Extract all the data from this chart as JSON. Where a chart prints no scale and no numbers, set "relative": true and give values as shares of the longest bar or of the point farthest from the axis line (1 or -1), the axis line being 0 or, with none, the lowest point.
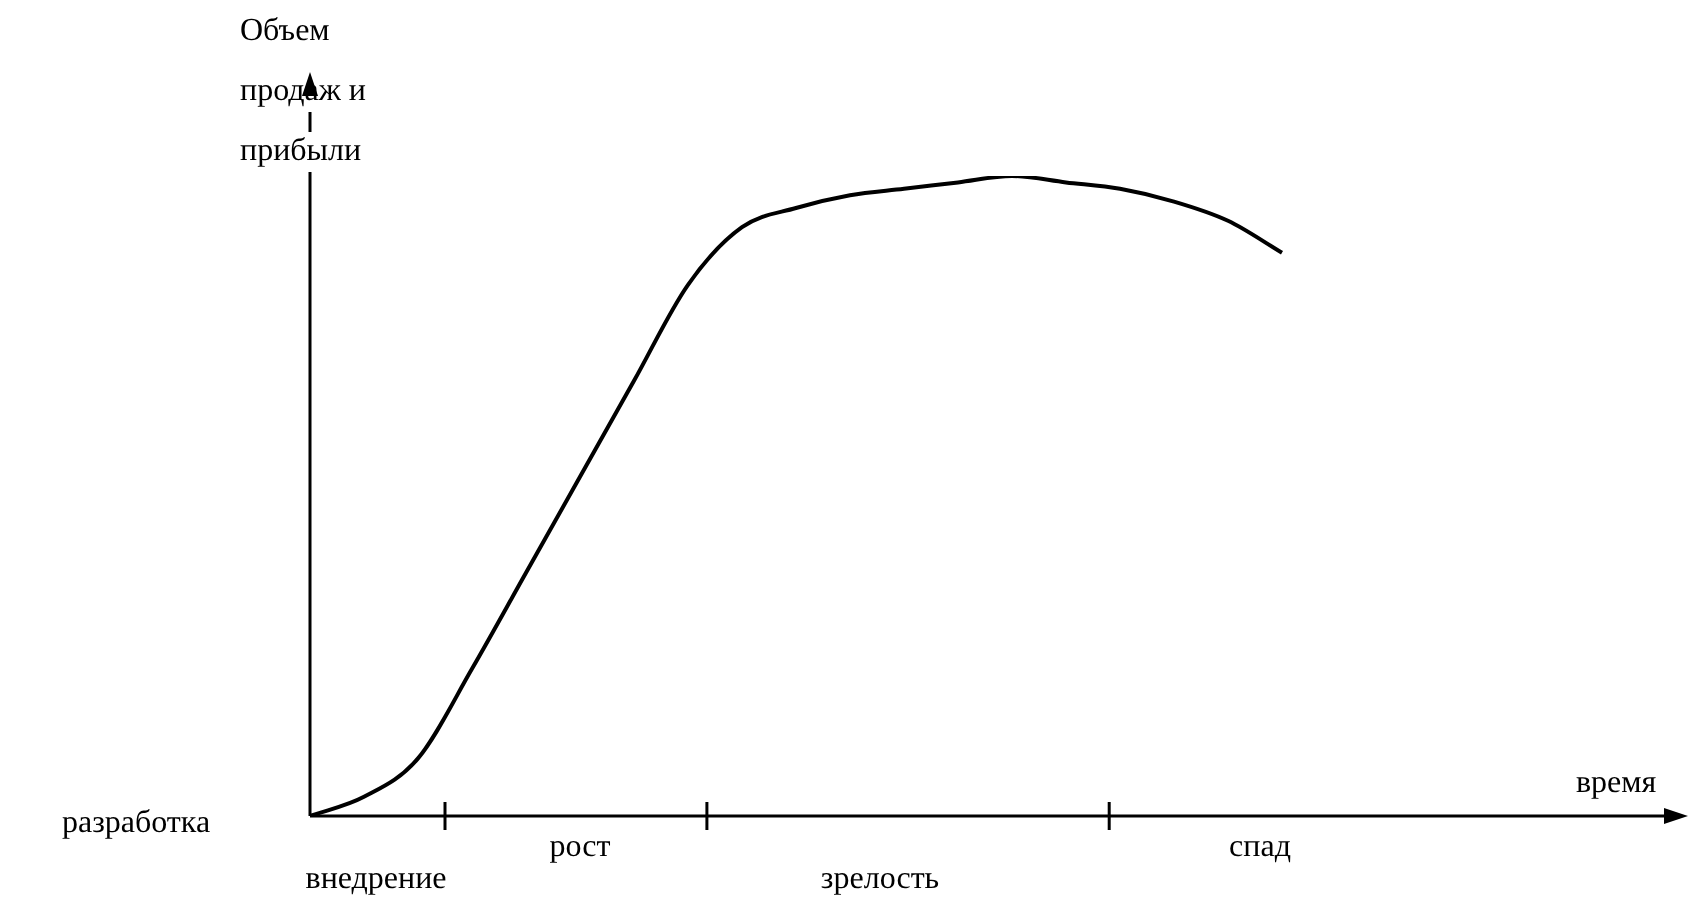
{
  "chart_data": {
    "type": "line",
    "relative": true,
    "ylabel": "Объем продаж и прибыли",
    "xlabel": "время",
    "categories": [
      null,
      null,
      null,
      null,
      null,
      null,
      null,
      null,
      null,
      null,
      null,
      null,
      null,
      null,
      null,
      null,
      null,
      null,
      null,
      null,
      null,
      null,
      null,
      null,
      null,
      null
    ],
    "series": [
      {
        "color": "#000000",
        "values": [
          0,
          0.03,
          0.09,
          0.23,
          0.38,
          0.53,
          0.68,
          0.83,
          0.92,
          0.95,
          0.97,
          0.98,
          0.99,
          1,
          0.99,
          0.98,
          0.96,
          0.93,
          0.88,
          null,
          null,
          null,
          null,
          null,
          null,
          null
        ]
      }
    ],
    "annotations": [
      "разработка",
      "внедрение",
      "рост",
      "зрелость",
      "спад"
    ],
    "marker": "none",
    "line_style": "solid",
    "legend": false
  }
}
